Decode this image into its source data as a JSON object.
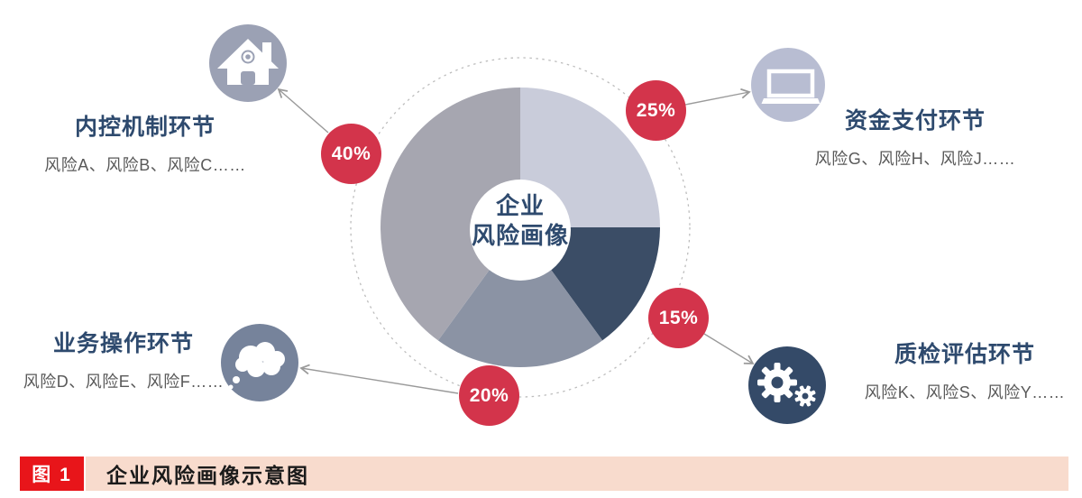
{
  "figure": {
    "center_label_line1": "企业",
    "center_label_line2": "风险画像"
  },
  "nodes": [
    {
      "id": "internal-control",
      "title": "内控机制环节",
      "risks": "风险A、风险B、风险C……",
      "percent": "40%",
      "icon": "house-icon",
      "circle_color": "#9ba1b4"
    },
    {
      "id": "fund-payment",
      "title": "资金支付环节",
      "risks": "风险G、风险H、风险J……",
      "percent": "25%",
      "icon": "laptop-icon",
      "circle_color": "#b8bdd2"
    },
    {
      "id": "business-operation",
      "title": "业务操作环节",
      "risks": "风险D、风险E、风险F……",
      "percent": "20%",
      "icon": "thought-bubble-icon",
      "circle_color": "#76839b"
    },
    {
      "id": "quality-evaluation",
      "title": "质检评估环节",
      "risks": "风险K、风险S、风险Y……",
      "percent": "15%",
      "icon": "gears-icon",
      "circle_color": "#344a68"
    }
  ],
  "chart_data": {
    "type": "pie",
    "title": "企业风险画像",
    "direction": "clockwise",
    "start_angle_deg": 0,
    "slices": [
      {
        "id": "fund-payment",
        "label": "资金支付环节",
        "value": 25,
        "color": "#c9ccda"
      },
      {
        "id": "quality-evaluation",
        "label": "质检评估环节",
        "value": 15,
        "color": "#3b4d66"
      },
      {
        "id": "business-operation",
        "label": "业务操作环节",
        "value": 20,
        "color": "#8b93a4"
      },
      {
        "id": "internal-control",
        "label": "内控机制环节",
        "value": 40,
        "color": "#a6a6b0"
      }
    ],
    "center_label": "企业风险画像",
    "donut": true
  },
  "caption": {
    "badge": "图 1",
    "title": "企业风险画像示意图"
  },
  "colors": {
    "badge_red": "#d3344b",
    "caption_badge_red": "#e8151a",
    "caption_bar_pink": "#f8dbcd",
    "title_navy": "#2e4a6e",
    "subtitle_gray": "#595959",
    "arrow_gray": "#9a9a9a",
    "dotted_circle_gray": "#bdbdbd",
    "background": "#ffffff"
  }
}
